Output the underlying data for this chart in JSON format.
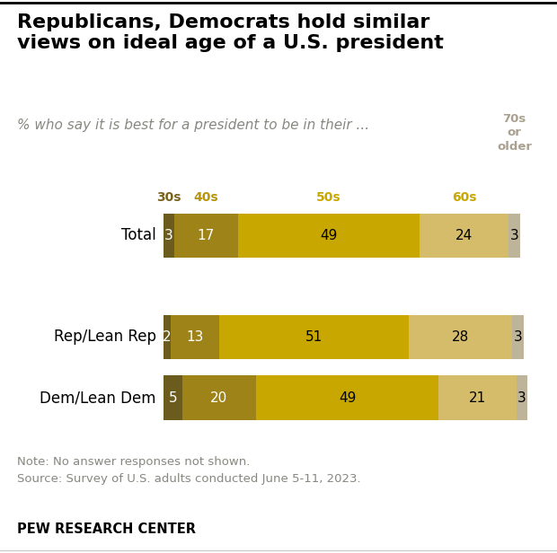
{
  "title": "Republicans, Democrats hold similar\nviews on ideal age of a U.S. president",
  "subtitle": "% who say it is best for a president to be in their ...",
  "note1": "Note: No answer responses not shown.",
  "note2": "Source: Survey of U.S. adults conducted June 5-11, 2023.",
  "footer": "PEW RESEARCH CENTER",
  "categories": [
    "Total",
    "Rep/Lean Rep",
    "Dem/Lean Dem"
  ],
  "age_labels": [
    "30s",
    "40s",
    "50s",
    "60s",
    "70s\nor\nolder"
  ],
  "age_label_colors": [
    "#7a6320",
    "#b8950a",
    "#c8a800",
    "#c8a800",
    "#aaa090"
  ],
  "data": {
    "Total": [
      3,
      17,
      49,
      24,
      3
    ],
    "Rep/Lean Rep": [
      2,
      13,
      51,
      28,
      3
    ],
    "Dem/Lean Dem": [
      5,
      20,
      49,
      21,
      3
    ]
  },
  "colors": [
    "#6b5c1e",
    "#9e8418",
    "#c8a800",
    "#d4bc6a",
    "#bdb49a"
  ],
  "bar_height": 0.55,
  "background_color": "#ffffff",
  "top_border_color": "#000000"
}
